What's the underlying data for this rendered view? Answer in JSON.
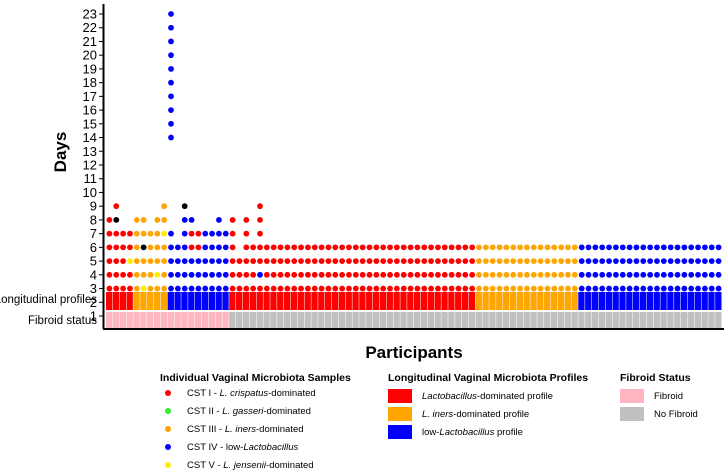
{
  "chart_data": {
    "type": "scatter",
    "xlabel": "Participants",
    "ylabel": "Days",
    "y_ticks": [
      "1",
      "2",
      "3",
      "4",
      "5",
      "6",
      "7",
      "8",
      "9",
      "10",
      "11",
      "12",
      "13",
      "14",
      "15",
      "16",
      "17",
      "18",
      "19",
      "20",
      "21",
      "22",
      "23"
    ],
    "ylim": [
      1,
      23
    ],
    "row_labels": {
      "profiles": "Longitudinal profiles",
      "fibroid": "Fibroid status"
    },
    "colors": {
      "CST I": "#ff0000",
      "CST II": "#33ee33",
      "CST III": "#ffa500",
      "CST IV": "#0000ff",
      "CST V": "#ffee00",
      "lacto": "#ff0000",
      "iners": "#ffa500",
      "low": "#0000ff",
      "fibroid": "#ffb6c1",
      "nofibroid": "#c0c0c0"
    },
    "participants": [
      {
        "profile": "lacto",
        "fibroid": "fibroid",
        "days": "IIIIIIII"
      },
      {
        "profile": "lacto",
        "fibroid": "fibroid",
        "days": "IIIIIII8I"
      },
      {
        "profile": "lacto",
        "fibroid": "fibroid",
        "days": "IIIIIII"
      },
      {
        "profile": "lacto",
        "fibroid": "fibroid",
        "days": "IIIIVII"
      },
      {
        "profile": "iners",
        "fibroid": "fibroid",
        "days": "33333333"
      },
      {
        "profile": "iners",
        "fibroid": "fibroid",
        "days": "33V33833"
      },
      {
        "profile": "iners",
        "fibroid": "fibroid",
        "days": "3333333"
      },
      {
        "profile": "iners",
        "fibroid": "fibroid",
        "days": "333V3333"
      },
      {
        "profile": "iners",
        "fibroid": "fibroid",
        "days": "333333V33"
      },
      {
        "profile": "low",
        "fibroid": "fibroid",
        "days": "44444444444444444444444",
        "empty": [
          8,
          9,
          10,
          11,
          12,
          13
        ]
      },
      {
        "profile": "low",
        "fibroid": "fibroid",
        "days": "444444"
      },
      {
        "profile": "low",
        "fibroid": "fibroid",
        "days": "444444449"
      },
      {
        "profile": "low",
        "fibroid": "fibroid",
        "days": "44444II4"
      },
      {
        "profile": "low",
        "fibroid": "fibroid",
        "days": "44444II"
      },
      {
        "profile": "low",
        "fibroid": "fibroid",
        "days": "4444444"
      },
      {
        "profile": "low",
        "fibroid": "fibroid",
        "days": "4444444"
      },
      {
        "profile": "low",
        "fibroid": "fibroid",
        "days": "44444444"
      },
      {
        "profile": "low",
        "fibroid": "fibroid",
        "days": "4444444"
      },
      {
        "profile": "lacto",
        "fibroid": "nofibroid",
        "days": "IIIIIIII"
      },
      {
        "profile": "lacto",
        "fibroid": "nofibroid",
        "days": "IIIII"
      },
      {
        "profile": "lacto",
        "fibroid": "nofibroid",
        "days": "IIIIIIII"
      },
      {
        "profile": "lacto",
        "fibroid": "nofibroid",
        "days": "IIIIII"
      },
      {
        "profile": "lacto",
        "fibroid": "nofibroid",
        "days": "III4IIIII"
      },
      {
        "profile": "lacto",
        "fibroid": "nofibroid",
        "days": "IIIIII"
      },
      {
        "profile": "lacto",
        "fibroid": "nofibroid",
        "days": "IIIIII"
      },
      {
        "profile": "lacto",
        "fibroid": "nofibroid",
        "days": "IIIIII"
      },
      {
        "profile": "lacto",
        "fibroid": "nofibroid",
        "days": "IIIIII"
      },
      {
        "profile": "lacto",
        "fibroid": "nofibroid",
        "days": "IIIIII"
      },
      {
        "profile": "lacto",
        "fibroid": "nofibroid",
        "days": "IIIIII"
      },
      {
        "profile": "lacto",
        "fibroid": "nofibroid",
        "days": "IIIIII"
      },
      {
        "profile": "lacto",
        "fibroid": "nofibroid",
        "days": "IIIIII"
      },
      {
        "profile": "lacto",
        "fibroid": "nofibroid",
        "days": "IIIIII"
      },
      {
        "profile": "lacto",
        "fibroid": "nofibroid",
        "days": "IIIIII"
      },
      {
        "profile": "lacto",
        "fibroid": "nofibroid",
        "days": "IIIIII"
      },
      {
        "profile": "lacto",
        "fibroid": "nofibroid",
        "days": "IIIIII"
      },
      {
        "profile": "lacto",
        "fibroid": "nofibroid",
        "days": "IIIIII"
      },
      {
        "profile": "lacto",
        "fibroid": "nofibroid",
        "days": "IIIIII"
      },
      {
        "profile": "lacto",
        "fibroid": "nofibroid",
        "days": "IIIIII"
      },
      {
        "profile": "lacto",
        "fibroid": "nofibroid",
        "days": "IIIIII"
      },
      {
        "profile": "lacto",
        "fibroid": "nofibroid",
        "days": "IIIIII"
      },
      {
        "profile": "lacto",
        "fibroid": "nofibroid",
        "days": "IIIIII"
      },
      {
        "profile": "lacto",
        "fibroid": "nofibroid",
        "days": "IIIIII"
      },
      {
        "profile": "lacto",
        "fibroid": "nofibroid",
        "days": "IIIIII"
      },
      {
        "profile": "lacto",
        "fibroid": "nofibroid",
        "days": "IIIIII"
      },
      {
        "profile": "lacto",
        "fibroid": "nofibroid",
        "days": "IIIIII"
      },
      {
        "profile": "lacto",
        "fibroid": "nofibroid",
        "days": "IIIIII"
      },
      {
        "profile": "lacto",
        "fibroid": "nofibroid",
        "days": "IIIIII"
      },
      {
        "profile": "lacto",
        "fibroid": "nofibroid",
        "days": "IIIIII"
      },
      {
        "profile": "lacto",
        "fibroid": "nofibroid",
        "days": "IIIIII"
      },
      {
        "profile": "lacto",
        "fibroid": "nofibroid",
        "days": "IIIIII"
      },
      {
        "profile": "lacto",
        "fibroid": "nofibroid",
        "days": "IIIIII"
      },
      {
        "profile": "lacto",
        "fibroid": "nofibroid",
        "days": "IIIIII"
      },
      {
        "profile": "lacto",
        "fibroid": "nofibroid",
        "days": "IIIIII"
      },
      {
        "profile": "lacto",
        "fibroid": "nofibroid",
        "days": "IIIIII"
      },
      {
        "profile": "iners",
        "fibroid": "nofibroid",
        "days": "333333"
      },
      {
        "profile": "iners",
        "fibroid": "nofibroid",
        "days": "333333"
      },
      {
        "profile": "iners",
        "fibroid": "nofibroid",
        "days": "333333"
      },
      {
        "profile": "iners",
        "fibroid": "nofibroid",
        "days": "333333"
      },
      {
        "profile": "iners",
        "fibroid": "nofibroid",
        "days": "333333"
      },
      {
        "profile": "iners",
        "fibroid": "nofibroid",
        "days": "333333"
      },
      {
        "profile": "iners",
        "fibroid": "nofibroid",
        "days": "333333"
      },
      {
        "profile": "iners",
        "fibroid": "nofibroid",
        "days": "333333"
      },
      {
        "profile": "iners",
        "fibroid": "nofibroid",
        "days": "333333"
      },
      {
        "profile": "iners",
        "fibroid": "nofibroid",
        "days": "333333"
      },
      {
        "profile": "iners",
        "fibroid": "nofibroid",
        "days": "333333"
      },
      {
        "profile": "iners",
        "fibroid": "nofibroid",
        "days": "333333"
      },
      {
        "profile": "iners",
        "fibroid": "nofibroid",
        "days": "333333"
      },
      {
        "profile": "iners",
        "fibroid": "nofibroid",
        "days": "333333"
      },
      {
        "profile": "iners",
        "fibroid": "nofibroid",
        "days": "333333"
      },
      {
        "profile": "low",
        "fibroid": "nofibroid",
        "days": "444444"
      },
      {
        "profile": "low",
        "fibroid": "nofibroid",
        "days": "444444"
      },
      {
        "profile": "low",
        "fibroid": "nofibroid",
        "days": "444444"
      },
      {
        "profile": "low",
        "fibroid": "nofibroid",
        "days": "444444"
      },
      {
        "profile": "low",
        "fibroid": "nofibroid",
        "days": "444444"
      },
      {
        "profile": "low",
        "fibroid": "nofibroid",
        "days": "444444"
      },
      {
        "profile": "low",
        "fibroid": "nofibroid",
        "days": "444444"
      },
      {
        "profile": "low",
        "fibroid": "nofibroid",
        "days": "444444"
      },
      {
        "profile": "low",
        "fibroid": "nofibroid",
        "days": "444444"
      },
      {
        "profile": "low",
        "fibroid": "nofibroid",
        "days": "444444"
      },
      {
        "profile": "low",
        "fibroid": "nofibroid",
        "days": "444444"
      },
      {
        "profile": "low",
        "fibroid": "nofibroid",
        "days": "444444"
      },
      {
        "profile": "low",
        "fibroid": "nofibroid",
        "days": "444444"
      },
      {
        "profile": "low",
        "fibroid": "nofibroid",
        "days": "444444"
      },
      {
        "profile": "low",
        "fibroid": "nofibroid",
        "days": "444444"
      },
      {
        "profile": "low",
        "fibroid": "nofibroid",
        "days": "444444"
      },
      {
        "profile": "low",
        "fibroid": "nofibroid",
        "days": "444444"
      },
      {
        "profile": "low",
        "fibroid": "nofibroid",
        "days": "444444"
      },
      {
        "profile": "low",
        "fibroid": "nofibroid",
        "days": "444444"
      },
      {
        "profile": "low",
        "fibroid": "nofibroid",
        "days": "444444"
      },
      {
        "profile": "low",
        "fibroid": "nofibroid",
        "days": "444444"
      }
    ]
  },
  "legend": {
    "samples": {
      "title": "Individual Vaginal Microbiota Samples",
      "items": [
        {
          "prefix": "CST I - ",
          "italic": "L. crispatus",
          "suffix": "-dominated",
          "color": "#ff0000"
        },
        {
          "prefix": "CST II - ",
          "italic": "L. gasseri",
          "suffix": "-dominated",
          "color": "#33ee33"
        },
        {
          "prefix": "CST III - ",
          "italic": "L. iners",
          "suffix": "-dominated",
          "color": "#ffa500"
        },
        {
          "prefix": "CST IV - low-",
          "italic": "Lactobacillus",
          "suffix": "",
          "color": "#0000ff"
        },
        {
          "prefix": "CST V - ",
          "italic": "L. jensenii",
          "suffix": "-dominated",
          "color": "#ffee00"
        }
      ]
    },
    "profiles": {
      "title": "Longitudinal Vaginal Microbiota Profiles",
      "items": [
        {
          "prefix": "",
          "italic": "Lactobacillus",
          "suffix": "-dominated profile",
          "color": "#ff0000"
        },
        {
          "prefix": "",
          "italic": "L. iners",
          "suffix": "-dominated profile",
          "color": "#ffa500"
        },
        {
          "prefix": "low-",
          "italic": "Lactobacillus",
          "suffix": " profile",
          "color": "#0000ff"
        }
      ]
    },
    "fibroid": {
      "title": "Fibroid Status",
      "items": [
        {
          "label": "Fibroid",
          "color": "#ffb6c1"
        },
        {
          "label": "No Fibroid",
          "color": "#c0c0c0"
        }
      ]
    }
  }
}
